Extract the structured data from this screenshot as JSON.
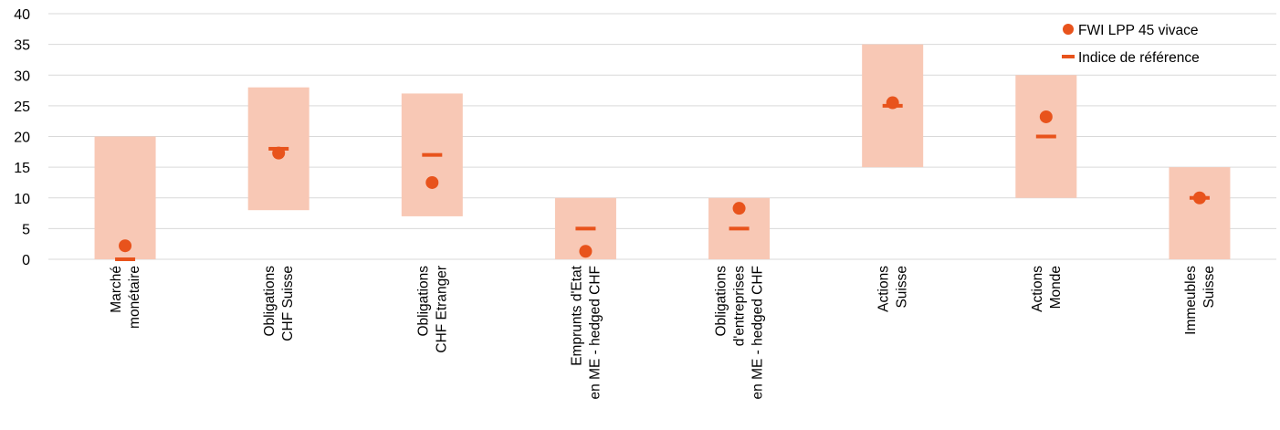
{
  "chart_data": {
    "type": "range-bar-with-markers",
    "ylim": [
      0,
      40
    ],
    "yticks": [
      0,
      5,
      10,
      15,
      20,
      25,
      30,
      35,
      40
    ],
    "grid": true,
    "legend_position": "top-right",
    "categories": [
      [
        "Marché",
        "monétaire"
      ],
      [
        "Obligations",
        "CHF Suisse"
      ],
      [
        "Obligations",
        "CHF Etranger"
      ],
      [
        "Emprunts d'Etat",
        "en ME - hedged CHF"
      ],
      [
        "Obligations",
        "d'entreprises",
        "en ME - hedged CHF"
      ],
      [
        "Actions",
        "Suisse"
      ],
      [
        "Actions",
        "Monde"
      ],
      [
        "Immeubles",
        "Suisse"
      ]
    ],
    "ranges": [
      [
        0,
        20
      ],
      [
        8,
        28
      ],
      [
        7,
        27
      ],
      [
        0,
        10
      ],
      [
        0,
        10
      ],
      [
        15,
        35
      ],
      [
        10,
        30
      ],
      [
        0,
        15
      ]
    ],
    "series": [
      {
        "name": "FWI LPP 45 vivace",
        "marker": "circle",
        "values": [
          2.2,
          17.3,
          12.5,
          1.3,
          8.3,
          25.5,
          23.2,
          10.0
        ]
      },
      {
        "name": "Indice de référence",
        "marker": "dash",
        "values": [
          0,
          18,
          17,
          5,
          5,
          25,
          20,
          10
        ]
      }
    ],
    "colors": {
      "range": "#f8c8b5",
      "marker": "#e8531c",
      "grid": "#d9d9d9"
    }
  }
}
